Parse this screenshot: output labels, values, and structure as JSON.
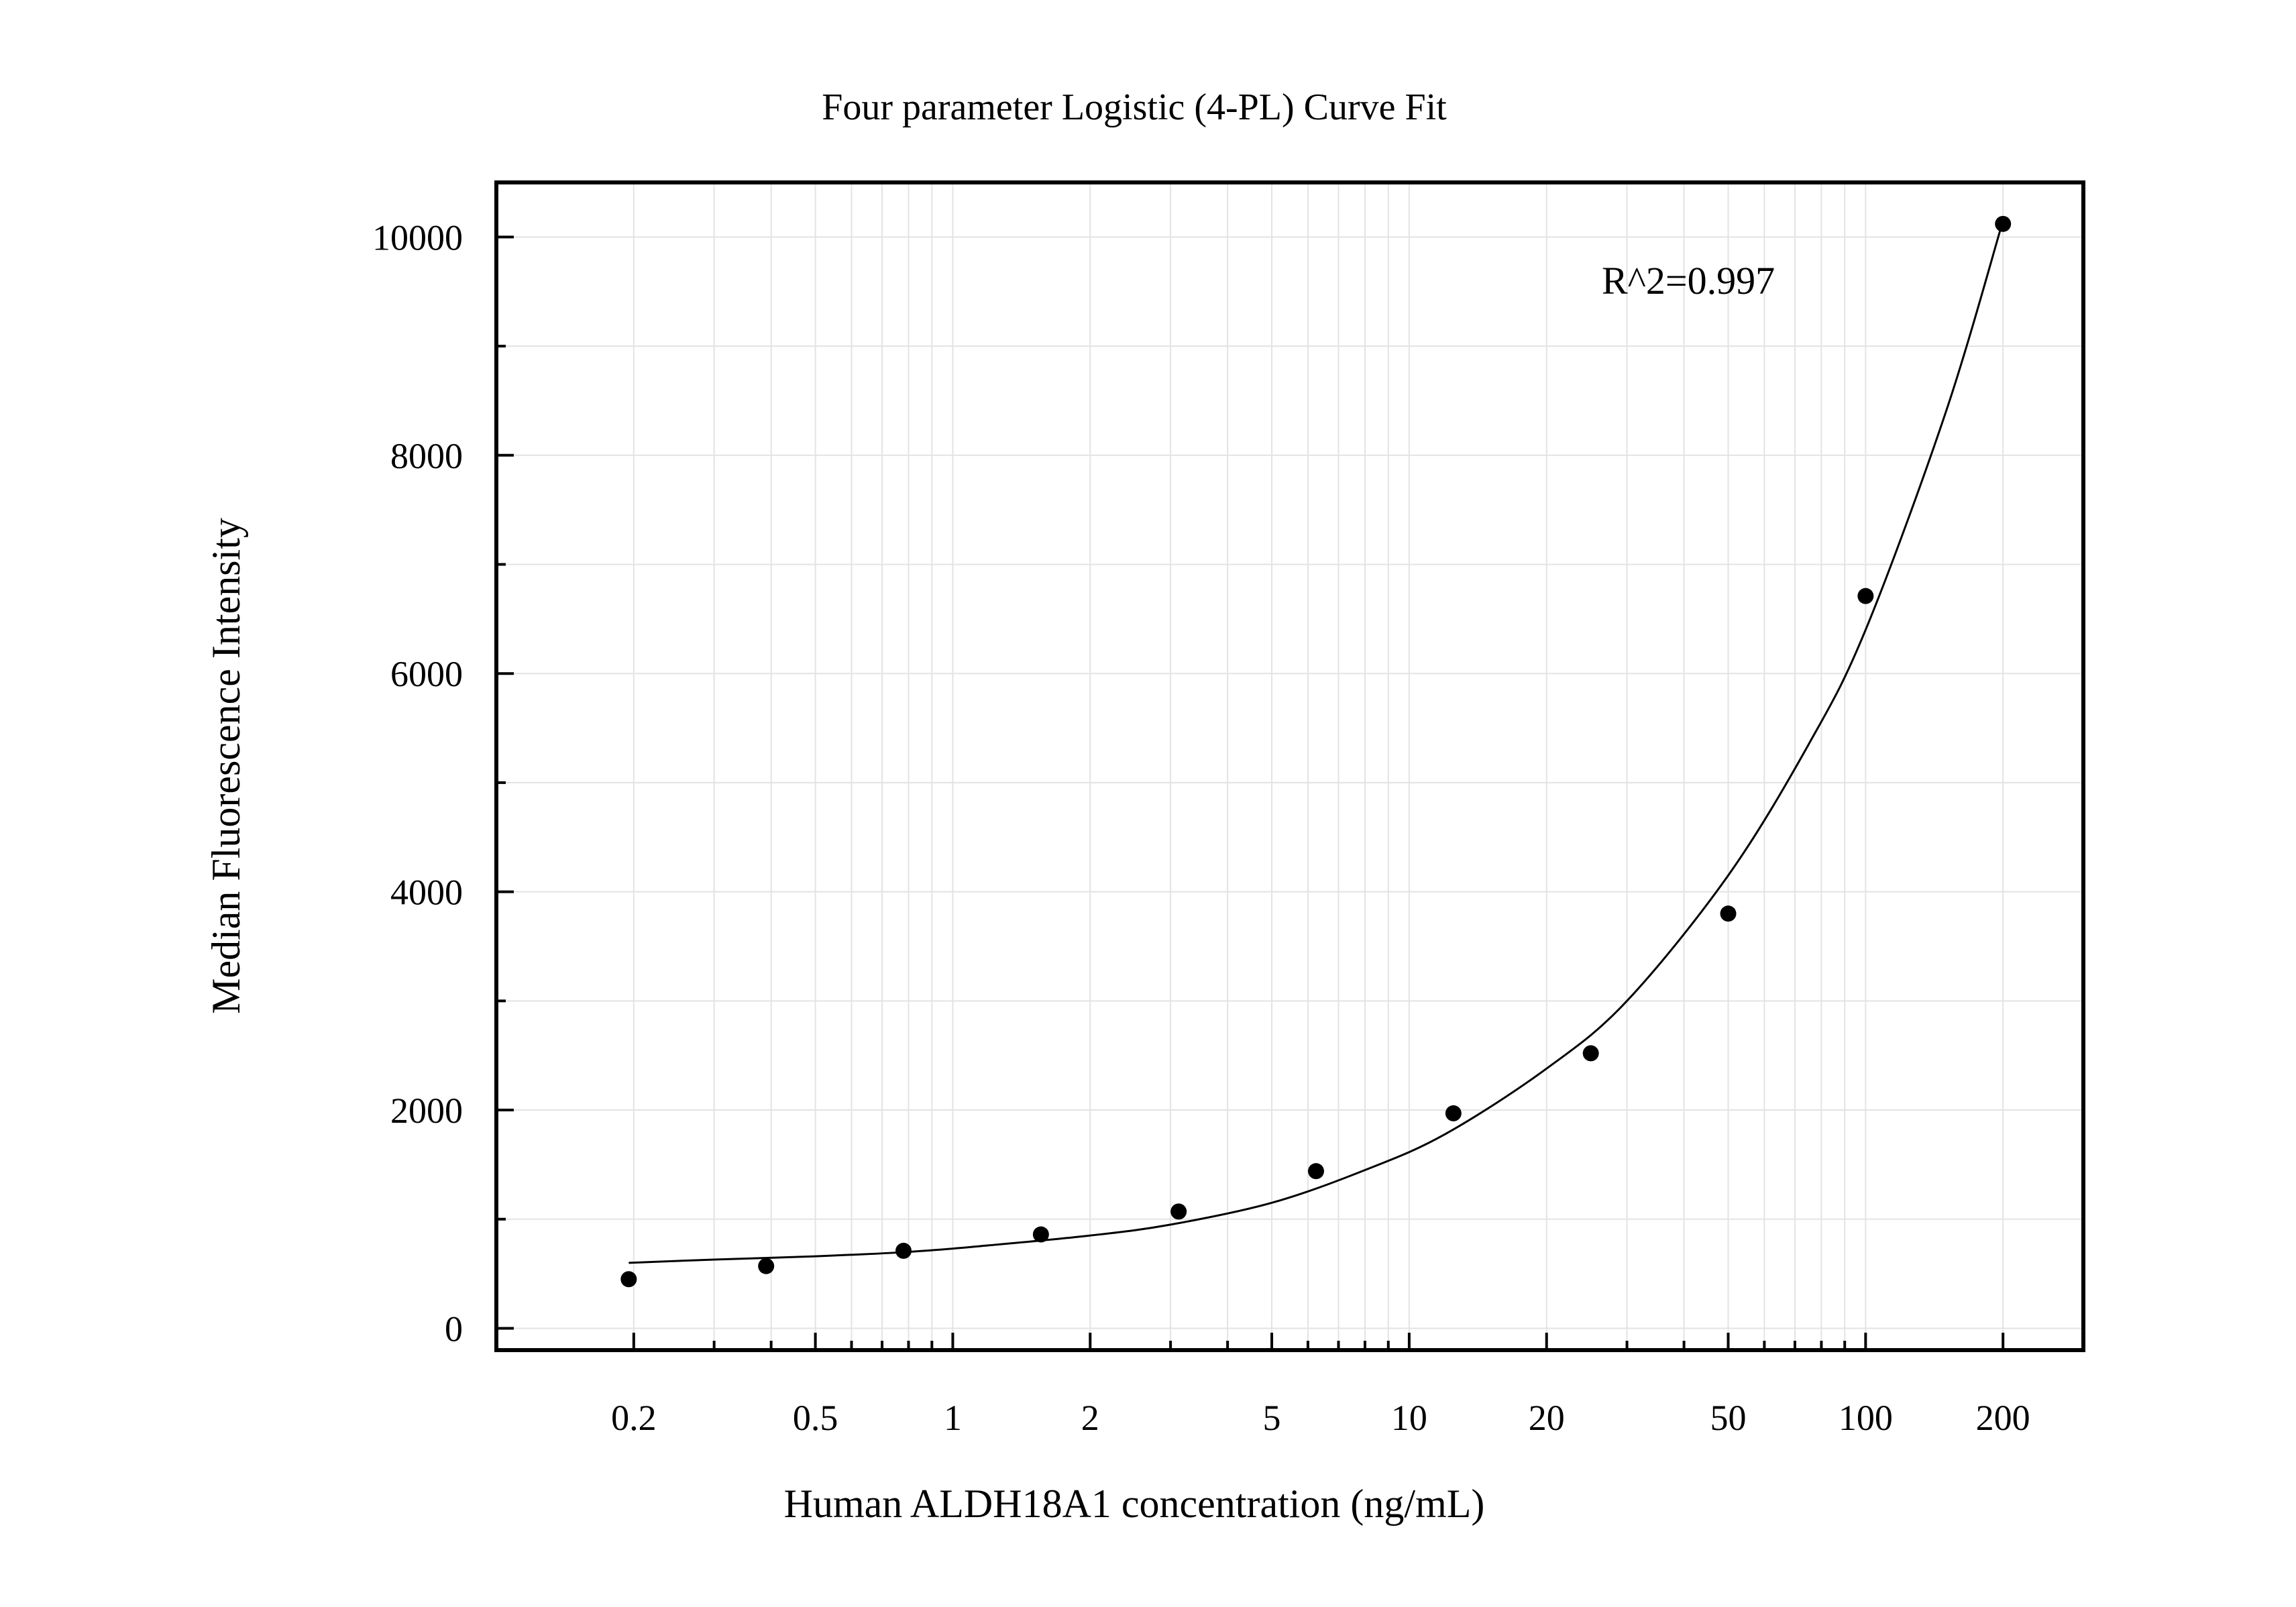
{
  "chart_data": {
    "type": "scatter",
    "title": "Four parameter Logistic (4-PL) Curve Fit",
    "xlabel": "Human ALDH18A1 concentration (ng/mL)",
    "ylabel": "Median Fluorescence Intensity",
    "x_scale": "log",
    "xlim": [
      0.1,
      300
    ],
    "ylim": [
      -200,
      10500
    ],
    "x_ticks": [
      0.2,
      0.5,
      1,
      2,
      5,
      10,
      20,
      50,
      100,
      200
    ],
    "x_tick_labels": [
      "0.2",
      "0.5",
      "1",
      "2",
      "5",
      "10",
      "20",
      "50",
      "100",
      "200"
    ],
    "y_ticks": [
      0,
      2000,
      4000,
      6000,
      8000,
      10000
    ],
    "y_tick_labels": [
      "0",
      "2000",
      "4000",
      "6000",
      "8000",
      "10000"
    ],
    "grid": true,
    "annotations": [
      {
        "text": "R^2=0.997"
      }
    ],
    "series": [
      {
        "kind": "points",
        "x": [
          0.195,
          0.39,
          0.78,
          1.56,
          3.125,
          6.25,
          12.5,
          25,
          50,
          100,
          200
        ],
        "y": [
          450,
          570,
          710,
          860,
          1070,
          1440,
          1970,
          2520,
          3800,
          6710,
          10120
        ]
      },
      {
        "kind": "fit-curve",
        "x": [
          0.195,
          0.3,
          0.5,
          0.8,
          1.2,
          2,
          3,
          5,
          8,
          12,
          20,
          30,
          50,
          75,
          100,
          150,
          200
        ],
        "y": [
          600,
          630,
          660,
          700,
          760,
          850,
          950,
          1150,
          1450,
          1780,
          2380,
          3000,
          4150,
          5350,
          6400,
          8400,
          10150
        ]
      }
    ],
    "colors": {
      "points": "#000000",
      "curve": "#000000",
      "grid": "#e3e3e3",
      "frame": "#000000"
    }
  }
}
